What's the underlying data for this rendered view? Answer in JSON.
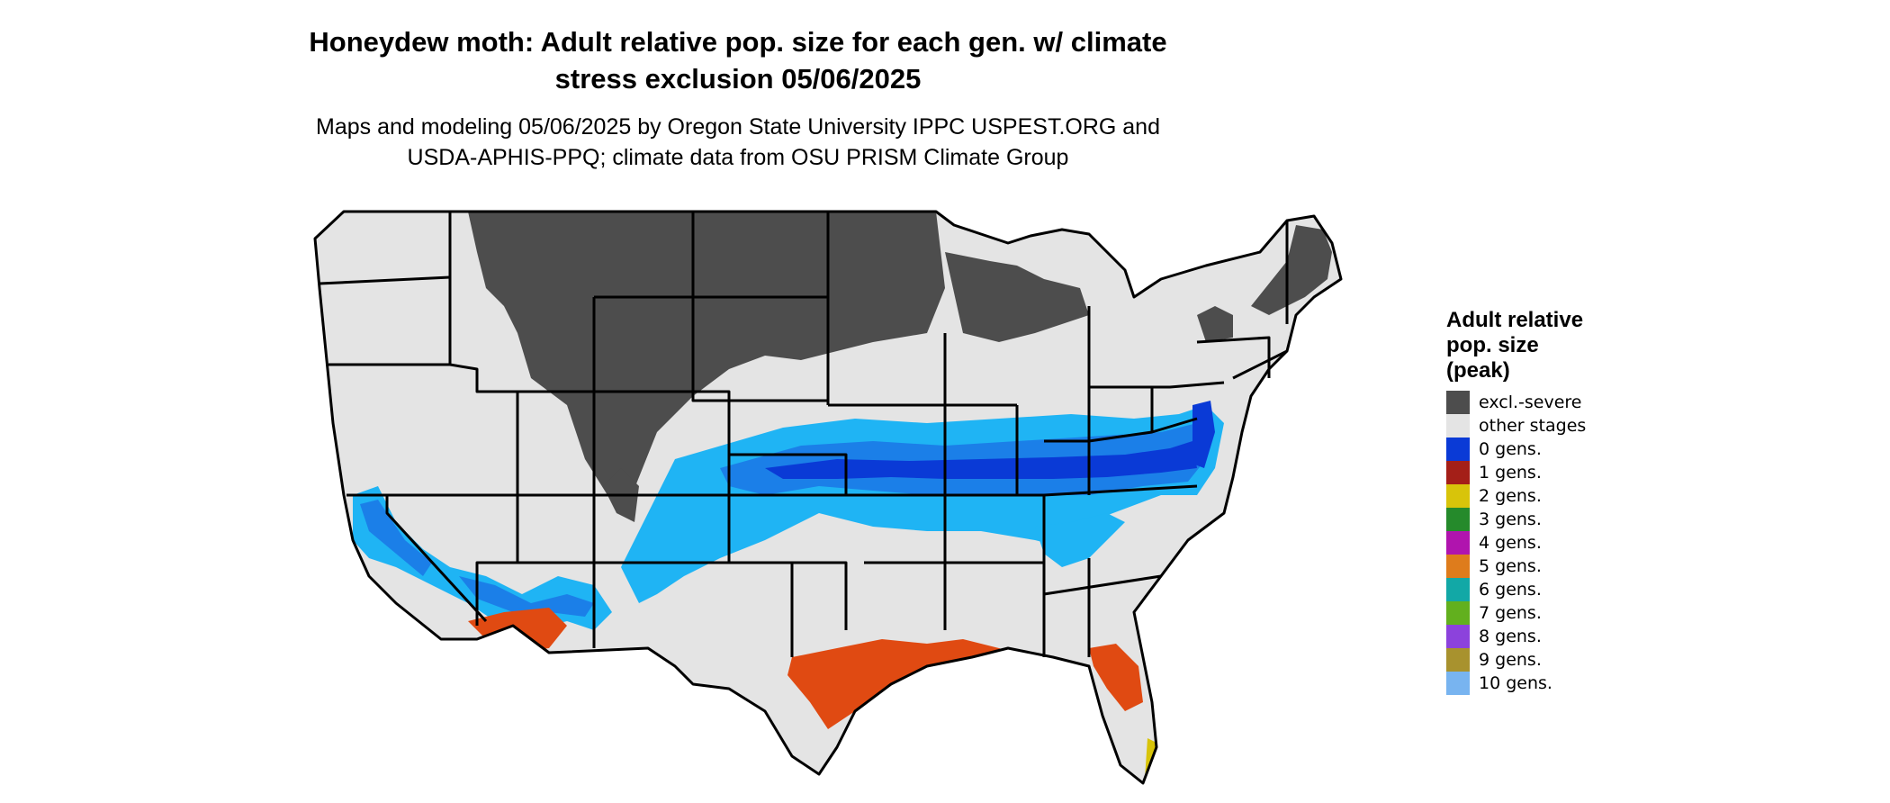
{
  "title": {
    "line1": "Honeydew moth: Adult relative pop. size for each gen. w/ climate",
    "line2": "stress exclusion 05/06/2025"
  },
  "subtitle": {
    "line1": "Maps and modeling 05/06/2025 by Oregon State University IPPC USPEST.ORG and",
    "line2": "USDA-APHIS-PPQ; climate data from OSU PRISM Climate Group"
  },
  "map": {
    "region": "Contiguous United States",
    "colors": {
      "land": "#e4e4e4",
      "border": "#000000",
      "excl_severe": "#4d4d4d",
      "zero_gens_dark": "#0a3ad6",
      "zero_gens_mid": "#1b7fe8",
      "zero_gens_light": "#1fb4f4",
      "one_gen": "#e04a12"
    }
  },
  "legend": {
    "title_line1": "Adult relative",
    "title_line2": "pop. size",
    "title_line3": "(peak)",
    "items": [
      {
        "label": "excl.-severe",
        "color": "#4d4d4d"
      },
      {
        "label": "other stages",
        "color": "#e4e4e4"
      },
      {
        "label": "0 gens.",
        "color": "#0a3ad6"
      },
      {
        "label": "1 gens.",
        "color": "#a41f18"
      },
      {
        "label": "2 gens.",
        "color": "#d8c40a"
      },
      {
        "label": "3 gens.",
        "color": "#258a2b"
      },
      {
        "label": "4 gens.",
        "color": "#b014ae"
      },
      {
        "label": "5 gens.",
        "color": "#de7c1c"
      },
      {
        "label": "6 gens.",
        "color": "#12a8a6"
      },
      {
        "label": "7 gens.",
        "color": "#62b01e"
      },
      {
        "label": "8 gens.",
        "color": "#8c42dc"
      },
      {
        "label": "9 gens.",
        "color": "#a8922e"
      },
      {
        "label": "10 gens.",
        "color": "#78b4f0"
      }
    ]
  }
}
